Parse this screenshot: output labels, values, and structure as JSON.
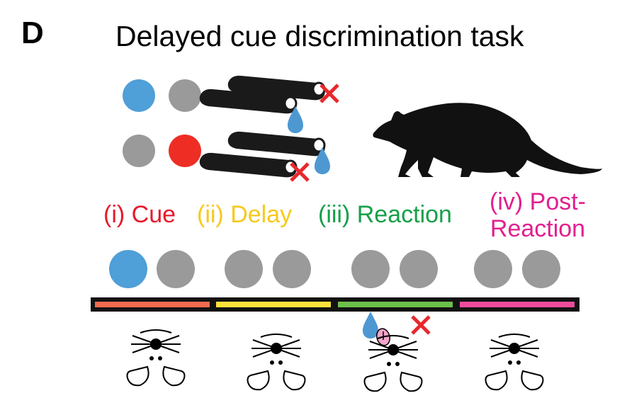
{
  "panel": {
    "letter": "D",
    "title": "Delayed cue discrimination task"
  },
  "phases": [
    {
      "id": "cue",
      "label": "(i) Cue",
      "color": "#e8192c"
    },
    {
      "id": "delay",
      "label": "(ii) Delay",
      "color": "#f7c91c"
    },
    {
      "id": "reaction",
      "label": "(iii) Reaction",
      "color": "#16a049"
    },
    {
      "id": "post",
      "label_line1": "(iv) Post-",
      "label_line2": "Reaction",
      "color": "#e2208f"
    }
  ],
  "timeline_colors": [
    "#f26a4f",
    "#fbe33b",
    "#6cc04a",
    "#ee4b9c"
  ],
  "colors": {
    "cue_blue": "#4f9fd8",
    "cue_red": "#ee2e24",
    "inactive_gray": "#9a9a9a",
    "water_drop": "#4e98d2",
    "error_mark": "#e8282c",
    "tongue": "#f2a6c9"
  },
  "icons": [
    "water-drop-icon",
    "error-x-icon",
    "rat-icon",
    "lick-spout-icon",
    "mouse-face-icon"
  ]
}
